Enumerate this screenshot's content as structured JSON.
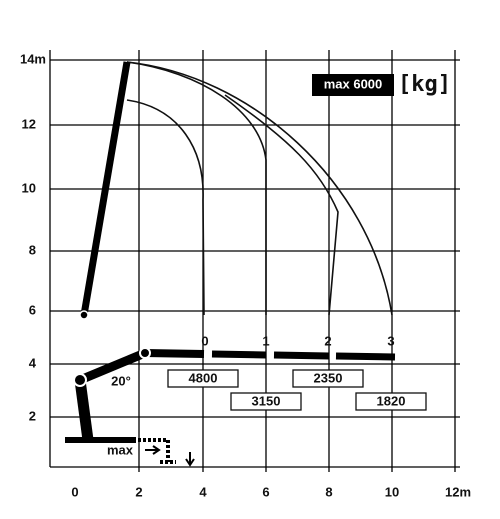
{
  "y_axis": {
    "labels": [
      "14m",
      "12",
      "10",
      "8",
      "6",
      "4",
      "2"
    ]
  },
  "x_axis": {
    "labels": [
      "0",
      "2",
      "4",
      "6",
      "8",
      "10",
      "12m"
    ]
  },
  "legend": {
    "max": "max 6000",
    "unit": "[kg]"
  },
  "extension_labels": [
    "0",
    "1",
    "2",
    "3"
  ],
  "loads": [
    "4800",
    "3150",
    "2350",
    "1820"
  ],
  "angle": "20°",
  "max_label": "max"
}
